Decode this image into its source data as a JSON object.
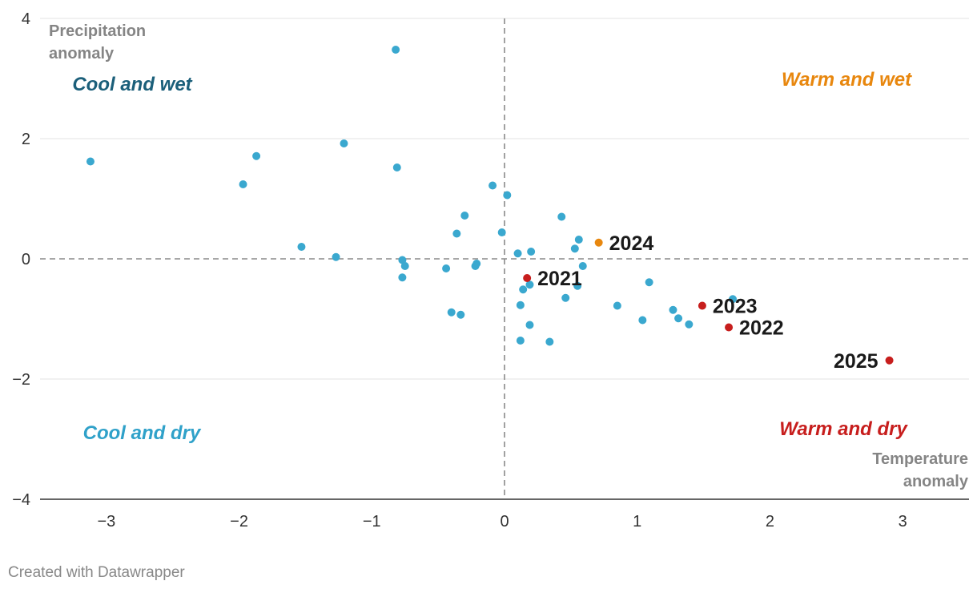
{
  "chart_data": {
    "type": "scatter",
    "xlabel": "Temperature anomaly",
    "ylabel": "Precipitation anomaly",
    "xlim": [
      -3.5,
      3.5
    ],
    "ylim": [
      -4,
      4
    ],
    "x_ticks": [
      -3,
      -2,
      -1,
      0,
      1,
      2,
      3
    ],
    "y_ticks": [
      -4,
      -2,
      0,
      2,
      4
    ],
    "x_tick_labels": [
      "−3",
      "−2",
      "−1",
      "0",
      "1",
      "2",
      "3"
    ],
    "y_tick_labels": [
      "−4",
      "−2",
      "0",
      "2",
      "4"
    ],
    "grid": "horizontal",
    "zero_lines": "dashed",
    "quadrant_labels": [
      {
        "text": "Cool and wet",
        "position": "top-left",
        "color": "#1b5f7a"
      },
      {
        "text": "Warm and wet",
        "position": "top-right",
        "color": "#e8870e"
      },
      {
        "text": "Cool and dry",
        "position": "bottom-left",
        "color": "#2fa1c9"
      },
      {
        "text": "Warm and dry",
        "position": "bottom-right",
        "color": "#c71e1d"
      }
    ],
    "series": [
      {
        "color": "#3aa8cf",
        "points": [
          {
            "x": -3.12,
            "y": 1.62
          },
          {
            "x": -1.97,
            "y": 1.24
          },
          {
            "x": -1.87,
            "y": 1.71
          },
          {
            "x": -1.53,
            "y": 0.2
          },
          {
            "x": -1.27,
            "y": 0.03
          },
          {
            "x": -1.21,
            "y": 1.92
          },
          {
            "x": -0.82,
            "y": 3.48
          },
          {
            "x": -0.81,
            "y": 1.52
          },
          {
            "x": -0.77,
            "y": -0.02
          },
          {
            "x": -0.75,
            "y": -0.12
          },
          {
            "x": -0.77,
            "y": -0.31
          },
          {
            "x": -0.44,
            "y": -0.16
          },
          {
            "x": -0.4,
            "y": -0.89
          },
          {
            "x": -0.33,
            "y": -0.93
          },
          {
            "x": -0.36,
            "y": 0.42
          },
          {
            "x": -0.3,
            "y": 0.72
          },
          {
            "x": -0.21,
            "y": -0.08
          },
          {
            "x": -0.22,
            "y": -0.12
          },
          {
            "x": -0.09,
            "y": 1.22
          },
          {
            "x": -0.02,
            "y": 0.44
          },
          {
            "x": 0.02,
            "y": 1.06
          },
          {
            "x": 0.1,
            "y": 0.09
          },
          {
            "x": 0.2,
            "y": 0.12
          },
          {
            "x": 0.19,
            "y": -0.43
          },
          {
            "x": 0.14,
            "y": -0.51
          },
          {
            "x": 0.12,
            "y": -0.77
          },
          {
            "x": 0.19,
            "y": -1.1
          },
          {
            "x": 0.12,
            "y": -1.36
          },
          {
            "x": 0.34,
            "y": -1.38
          },
          {
            "x": 0.43,
            "y": 0.7
          },
          {
            "x": 0.46,
            "y": -0.65
          },
          {
            "x": 0.53,
            "y": 0.17
          },
          {
            "x": 0.56,
            "y": 0.32
          },
          {
            "x": 0.55,
            "y": -0.45
          },
          {
            "x": 0.59,
            "y": -0.12
          },
          {
            "x": 0.85,
            "y": -0.78
          },
          {
            "x": 1.04,
            "y": -1.02
          },
          {
            "x": 1.09,
            "y": -0.39
          },
          {
            "x": 1.27,
            "y": -0.85
          },
          {
            "x": 1.31,
            "y": -0.99
          },
          {
            "x": 1.39,
            "y": -1.09
          },
          {
            "x": 1.72,
            "y": -0.67
          }
        ]
      },
      {
        "color": "#c71e1d",
        "points": [
          {
            "x": 0.17,
            "y": -0.32,
            "label": "2021",
            "label_side": "right"
          },
          {
            "x": 1.49,
            "y": -0.78,
            "label": "2023",
            "label_side": "right"
          },
          {
            "x": 1.69,
            "y": -1.14,
            "label": "2022",
            "label_side": "right"
          },
          {
            "x": 2.9,
            "y": -1.69,
            "label": "2025",
            "label_side": "left"
          }
        ]
      },
      {
        "color": "#e8870e",
        "points": [
          {
            "x": 0.71,
            "y": 0.27,
            "label": "2024",
            "label_side": "right"
          }
        ]
      }
    ]
  },
  "footer": "Created with Datawrapper"
}
